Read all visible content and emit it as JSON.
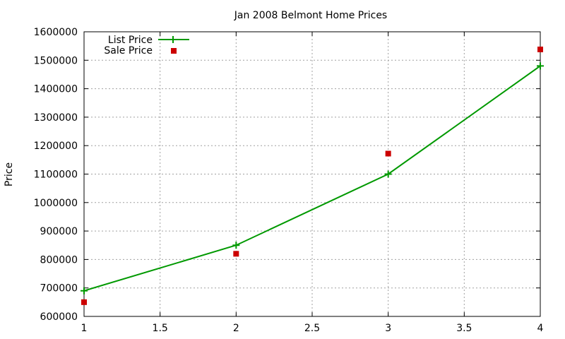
{
  "chart_data": {
    "type": "line",
    "title": "Jan 2008 Belmont Home Prices",
    "xlabel": "",
    "ylabel": "Price",
    "xlim": [
      1,
      4
    ],
    "ylim": [
      600000,
      1600000
    ],
    "x_ticks": [
      1,
      1.5,
      2,
      2.5,
      3,
      3.5,
      4
    ],
    "x_tick_labels": [
      "1",
      "1.5",
      "2",
      "2.5",
      "3",
      "3.5",
      "4"
    ],
    "y_ticks": [
      600000,
      700000,
      800000,
      900000,
      1000000,
      1100000,
      1200000,
      1300000,
      1400000,
      1500000,
      1600000
    ],
    "y_tick_labels": [
      "600000",
      "700000",
      "800000",
      "900000",
      "1000000",
      "1100000",
      "1200000",
      "1300000",
      "1400000",
      "1500000",
      "1600000"
    ],
    "grid": true,
    "legend_position": "top-left",
    "series": [
      {
        "name": "List Price",
        "style": "line+plus-markers",
        "color": "#009900",
        "x": [
          1,
          2,
          3,
          4
        ],
        "y": [
          690000,
          850000,
          1100000,
          1480000
        ]
      },
      {
        "name": "Sale Price",
        "style": "square-markers",
        "color": "#cc0000",
        "x": [
          1,
          2,
          3,
          4
        ],
        "y": [
          650000,
          820000,
          1172000,
          1538000
        ]
      }
    ]
  }
}
